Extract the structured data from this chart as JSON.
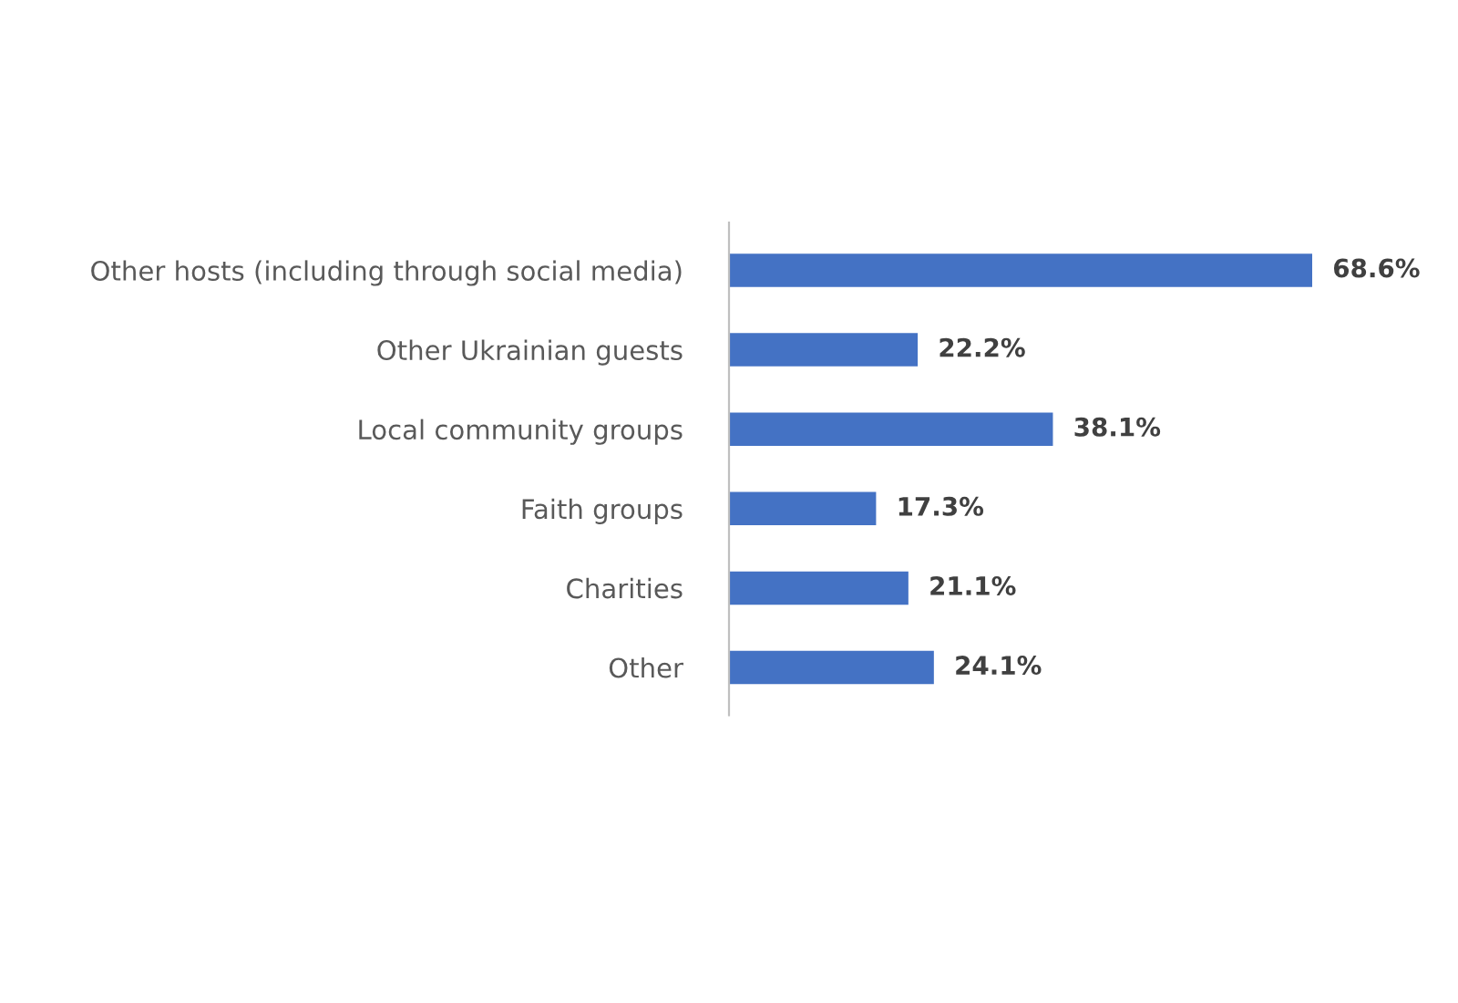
{
  "chart_data": {
    "type": "bar",
    "orientation": "horizontal",
    "categories": [
      "Other hosts (including through social media)",
      "Other Ukrainian guests",
      "Local community groups",
      "Faith groups",
      "Charities",
      "Other"
    ],
    "values": [
      68.6,
      22.2,
      38.1,
      17.3,
      21.1,
      24.1
    ],
    "value_labels": [
      "68.6%",
      "22.2%",
      "38.1%",
      "17.3%",
      "21.1%",
      "24.1%"
    ],
    "color": "#4472c4",
    "tick_labels": "y",
    "grid": false,
    "legend": false
  }
}
